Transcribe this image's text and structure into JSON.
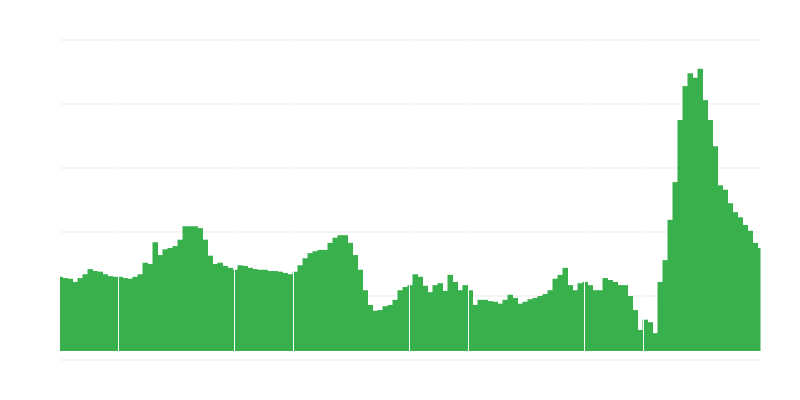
{
  "chart_data": {
    "type": "area",
    "title": "",
    "xlabel": "",
    "ylabel": "",
    "ylim": [
      0,
      5
    ],
    "grid": true,
    "legend": "none",
    "color": "#38b14c",
    "grid_color": "#ebebeb",
    "values": [
      1.3,
      1.28,
      1.27,
      1.22,
      1.28,
      1.34,
      1.42,
      1.39,
      1.38,
      1.34,
      1.31,
      1.3,
      1.3,
      1.28,
      1.27,
      1.3,
      1.34,
      1.52,
      1.5,
      1.84,
      1.64,
      1.73,
      1.75,
      1.78,
      1.88,
      2.09,
      2.09,
      2.09,
      2.06,
      1.88,
      1.63,
      1.5,
      1.52,
      1.47,
      1.44,
      1.41,
      1.48,
      1.47,
      1.44,
      1.42,
      1.41,
      1.41,
      1.39,
      1.39,
      1.38,
      1.36,
      1.34,
      1.38,
      1.48,
      1.59,
      1.67,
      1.7,
      1.72,
      1.72,
      1.83,
      1.91,
      1.95,
      1.95,
      1.83,
      1.64,
      1.41,
      1.09,
      0.86,
      0.77,
      0.78,
      0.84,
      0.86,
      0.94,
      1.09,
      1.14,
      1.17,
      1.34,
      1.3,
      1.16,
      1.06,
      1.17,
      1.2,
      1.08,
      1.33,
      1.22,
      1.09,
      1.17,
      1.09,
      0.86,
      0.94,
      0.94,
      0.92,
      0.91,
      0.88,
      0.94,
      1.02,
      0.97,
      0.88,
      0.91,
      0.95,
      0.97,
      1.0,
      1.03,
      1.09,
      1.27,
      1.33,
      1.44,
      1.17,
      1.09,
      1.2,
      1.22,
      1.17,
      1.09,
      1.09,
      1.28,
      1.25,
      1.22,
      1.17,
      1.17,
      1.0,
      0.78,
      0.47,
      0.63,
      0.59,
      0.42,
      1.22,
      1.56,
      2.19,
      2.78,
      3.75,
      4.28,
      4.48,
      4.41,
      4.55,
      4.06,
      3.75,
      3.34,
      2.73,
      2.66,
      2.45,
      2.31,
      2.23,
      2.11,
      2.02,
      1.83,
      1.75
    ]
  }
}
